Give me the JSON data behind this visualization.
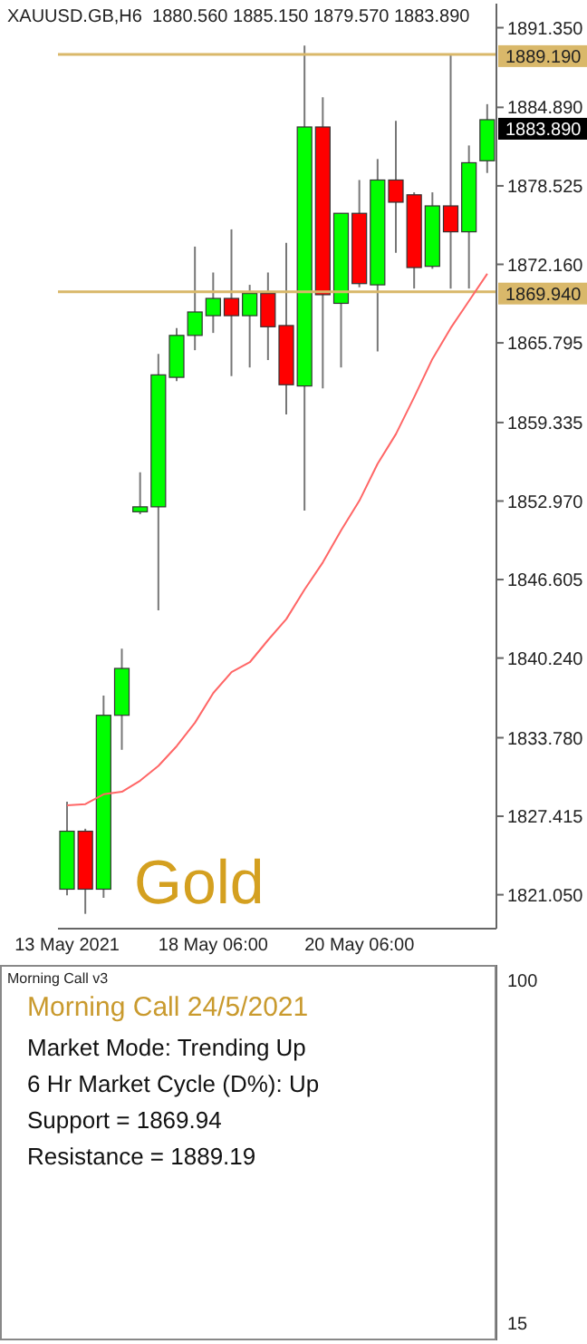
{
  "chart_data": [
    {
      "type": "candlestick",
      "title": "XAUUSD.GB,H6  1880.560 1885.150 1879.570 1883.890",
      "categories": [
        "13 May 2021",
        null,
        null,
        null,
        null,
        null,
        null,
        null,
        "18 May 06:00",
        null,
        null,
        null,
        null,
        null,
        null,
        null,
        "20 May 06:00",
        null,
        null,
        null,
        null,
        null,
        null,
        null
      ],
      "ohlc": [
        [
          1821.5,
          1828.6,
          1821.0,
          1826.2
        ],
        [
          1826.2,
          1826.4,
          1819.5,
          1821.5
        ],
        [
          1821.5,
          1837.2,
          1820.8,
          1835.6
        ],
        [
          1835.6,
          1841.0,
          1832.8,
          1839.4
        ],
        [
          1852.1,
          1855.3,
          1851.9,
          1852.5
        ],
        [
          1852.5,
          1864.9,
          1844.1,
          1863.2
        ],
        [
          1863.0,
          1867.0,
          1862.7,
          1866.4
        ],
        [
          1866.4,
          1873.6,
          1865.2,
          1868.3
        ],
        [
          1868.0,
          1871.5,
          1866.6,
          1869.4
        ],
        [
          1869.4,
          1875.0,
          1863.1,
          1868.0
        ],
        [
          1868.0,
          1870.5,
          1863.8,
          1869.8
        ],
        [
          1869.8,
          1871.5,
          1864.4,
          1867.1
        ],
        [
          1867.2,
          1873.9,
          1860.0,
          1862.4
        ],
        [
          1862.3,
          1889.9,
          1852.2,
          1883.3
        ],
        [
          1883.3,
          1885.7,
          1862.1,
          1869.7
        ],
        [
          1869.0,
          1876.3,
          1863.8,
          1876.3
        ],
        [
          1876.3,
          1879.0,
          1870.3,
          1870.6
        ],
        [
          1870.5,
          1880.7,
          1865.1,
          1879.0
        ],
        [
          1879.0,
          1883.8,
          1873.1,
          1877.2
        ],
        [
          1877.8,
          1878.0,
          1870.2,
          1871.9
        ],
        [
          1872.0,
          1878.0,
          1871.8,
          1876.9
        ],
        [
          1876.9,
          1889.2,
          1870.2,
          1874.8
        ],
        [
          1874.8,
          1881.8,
          1870.2,
          1880.4
        ],
        [
          1880.56,
          1885.15,
          1879.57,
          1883.89
        ]
      ],
      "colors": [
        "#00ff00",
        "#ff0000",
        "#00ff00",
        "#00ff00",
        "#00ff00",
        "#00ff00",
        "#00ff00",
        "#00ff00",
        "#00ff00",
        "#ff0000",
        "#00ff00",
        "#ff0000",
        "#ff0000",
        "#00ff00",
        "#ff0000",
        "#00ff00",
        "#ff0000",
        "#00ff00",
        "#ff0000",
        "#ff0000",
        "#00ff00",
        "#ff0000",
        "#00ff00",
        "#00ff00"
      ],
      "series": [
        {
          "type": "line",
          "color": "#ff6666",
          "values": [
            1828.3,
            1828.4,
            1829.2,
            1829.4,
            1830.3,
            1831.5,
            1833.1,
            1835.0,
            1837.4,
            1839.1,
            1839.9,
            1841.7,
            1843.4,
            1845.8,
            1848.0,
            1850.6,
            1853.0,
            1856.0,
            1858.4,
            1861.4,
            1864.5,
            1867.0,
            1869.2,
            1871.4
          ]
        }
      ],
      "ylim": [
        1818.3,
        1893.3
      ],
      "yticks": [
        {
          "value": 1821.05,
          "label": "1821.050"
        },
        {
          "value": 1827.415,
          "label": "1827.415"
        },
        {
          "value": 1833.78,
          "label": "1833.780"
        },
        {
          "value": 1840.24,
          "label": "1840.240"
        },
        {
          "value": 1846.605,
          "label": "1846.605"
        },
        {
          "value": 1852.97,
          "label": "1852.970"
        },
        {
          "value": 1859.335,
          "label": "1859.335"
        },
        {
          "value": 1865.795,
          "label": "1865.795"
        },
        {
          "value": 1872.16,
          "label": "1872.160"
        },
        {
          "value": 1878.525,
          "label": "1878.525"
        },
        {
          "value": 1884.89,
          "label": "1884.890"
        },
        {
          "value": 1891.35,
          "label": "1891.350"
        }
      ],
      "ref_lines": [
        {
          "axis": "y",
          "value": 1889.19,
          "label": "1889.190",
          "color": "#d9b86a"
        },
        {
          "axis": "y",
          "value": 1869.94,
          "label": "1869.940",
          "color": "#d9b86a"
        }
      ],
      "annotations": [
        "Gold",
        "1883.890"
      ],
      "grid": false
    },
    {
      "type": "other",
      "title": "Morning Call v3",
      "subtitle": "Morning Call 24/5/2021",
      "annotations": [
        "Market Mode: Trending Up",
        "6 Hr Market Cycle (D%): Up",
        "Support = 1869.94",
        "Resistance = 1889.19",
        "100",
        "15"
      ]
    }
  ]
}
